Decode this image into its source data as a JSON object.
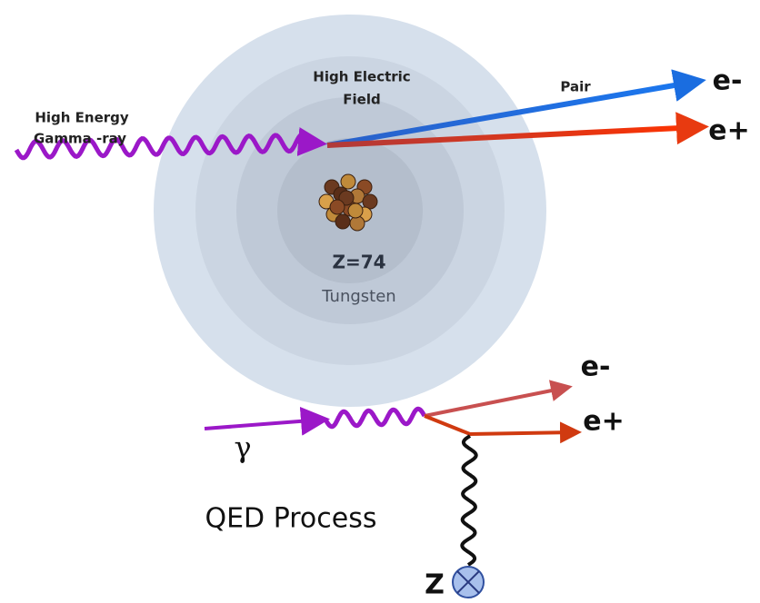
{
  "top": {
    "gamma_label": [
      "High Energy",
      "Gamma -ray"
    ],
    "field_label": [
      "High Electric",
      "Field"
    ],
    "pair_label": "Pair",
    "electron": "e-",
    "positron": "e+",
    "nucleus_charge": "Z=74",
    "nucleus_name": "Tungsten"
  },
  "bottom": {
    "electron": "e-",
    "positron": "e+",
    "photon": "γ",
    "process": "QED Process",
    "nucleus": "Z"
  }
}
